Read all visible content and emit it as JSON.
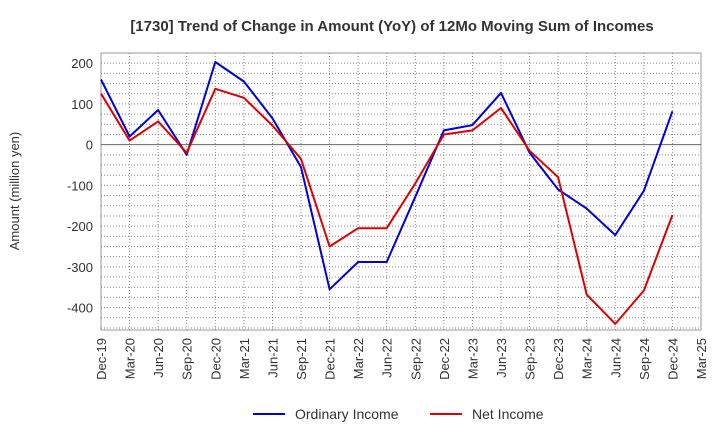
{
  "chart_data": {
    "type": "line",
    "title": "[1730]  Trend of Change in Amount (YoY) of 12Mo Moving Sum of Incomes",
    "xlabel": "",
    "ylabel": "Amount (million yen)",
    "x": [
      "Dec-19",
      "Mar-20",
      "Jun-20",
      "Sep-20",
      "Dec-20",
      "Mar-21",
      "Jun-21",
      "Sep-21",
      "Dec-21",
      "Mar-22",
      "Jun-22",
      "Sep-22",
      "Dec-22",
      "Mar-23",
      "Jun-23",
      "Sep-23",
      "Dec-23",
      "Mar-24",
      "Jun-24",
      "Sep-24",
      "Dec-24",
      "Mar-25"
    ],
    "ylim": [
      -455,
      225
    ],
    "yticks": [
      200,
      100,
      0,
      -100,
      -200,
      -300,
      -400
    ],
    "grid": true,
    "legend_position": "bottom",
    "series": [
      {
        "name": "Ordinary Income",
        "color": "#0000dd",
        "values": [
          160,
          20,
          85,
          -25,
          203,
          155,
          65,
          -55,
          -355,
          -288,
          -288,
          -128,
          35,
          48,
          127,
          -20,
          -110,
          -157,
          -222,
          -113,
          82,
          null
        ]
      },
      {
        "name": "Net Income",
        "color": "#dd0000",
        "values": [
          125,
          10,
          57,
          -20,
          137,
          115,
          47,
          -35,
          -250,
          -205,
          -205,
          -95,
          25,
          35,
          90,
          -15,
          -80,
          -368,
          -440,
          -358,
          -173,
          null
        ]
      }
    ]
  }
}
